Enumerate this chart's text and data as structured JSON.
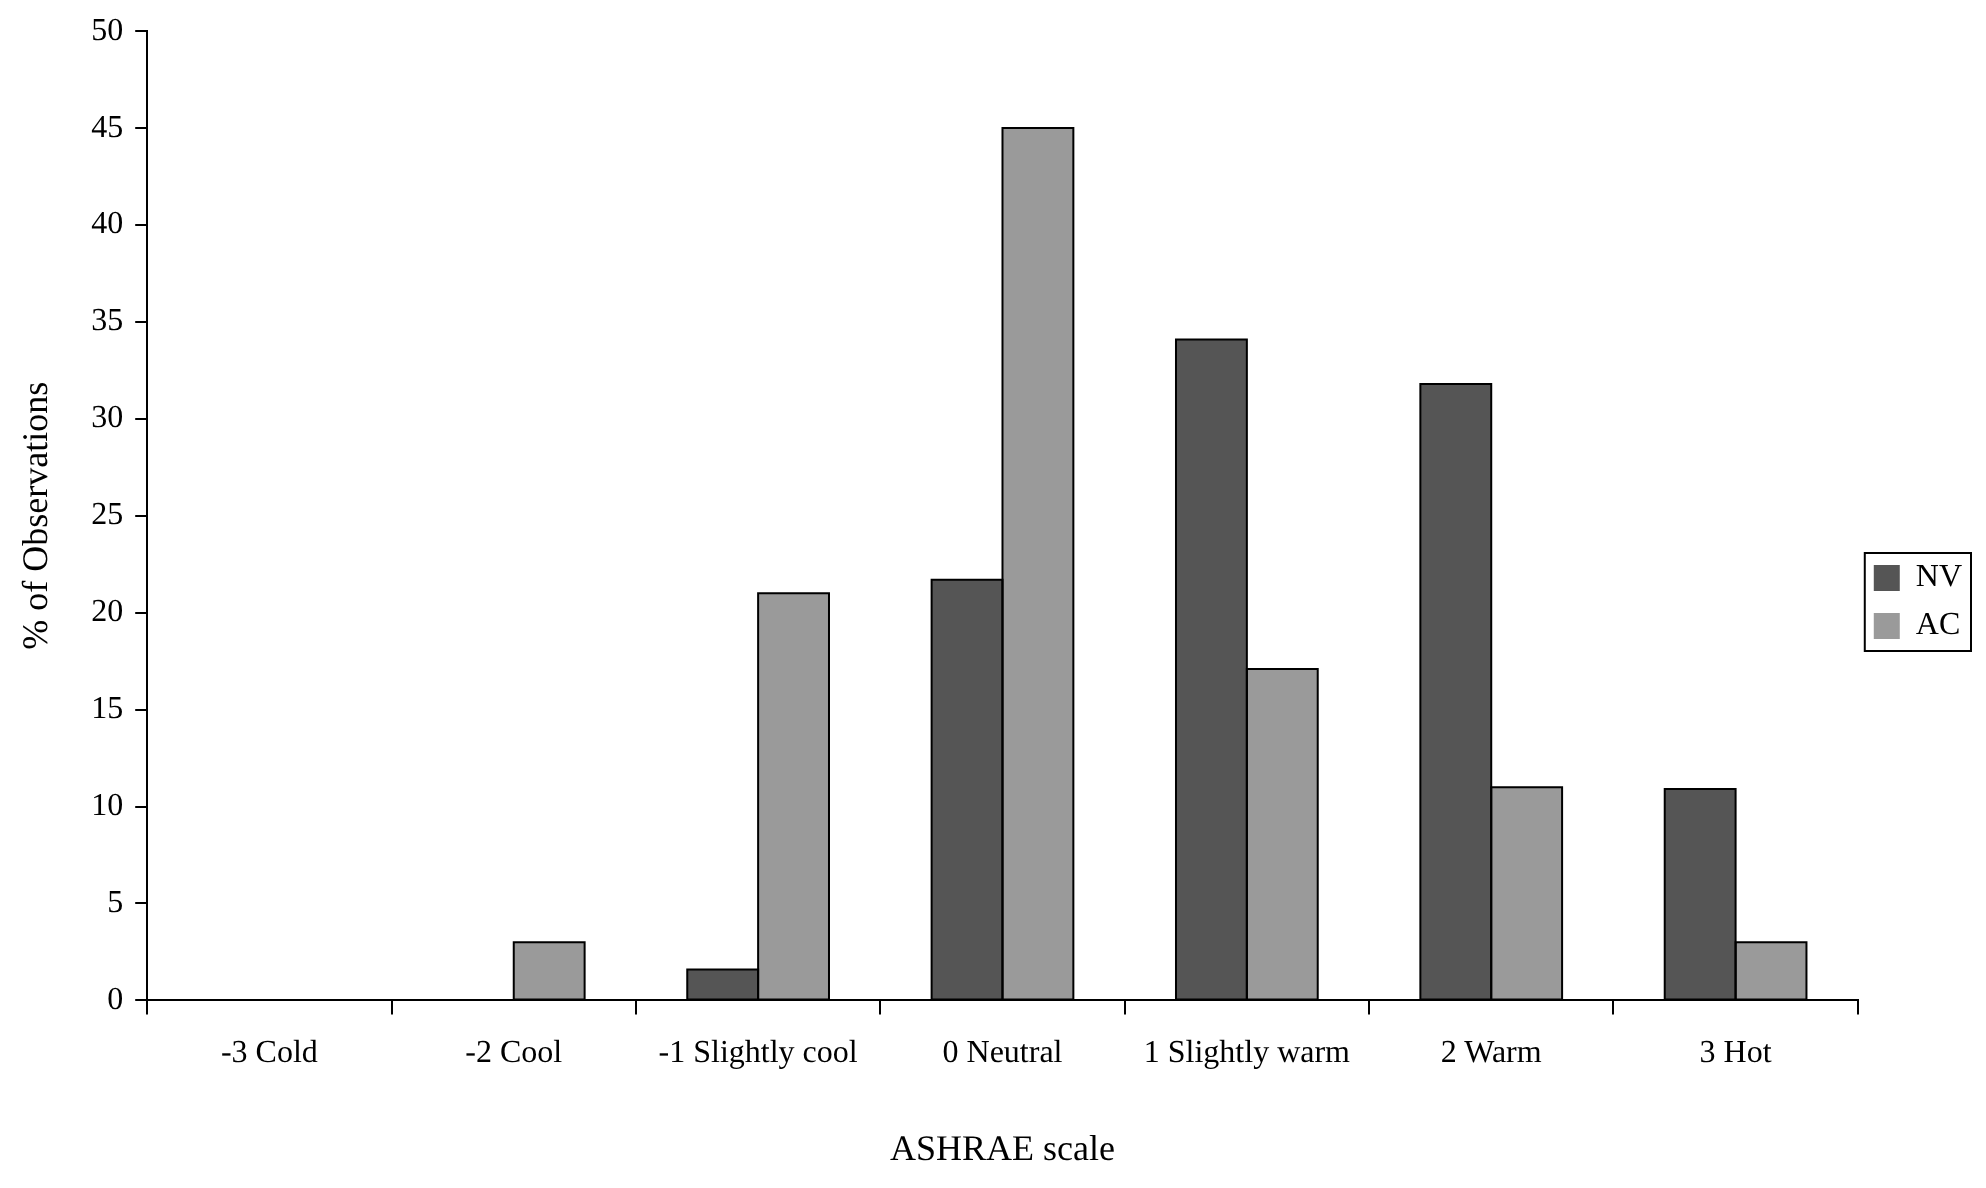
{
  "chart_data": {
    "type": "bar",
    "xlabel": "ASHRAE scale",
    "ylabel": "% of Observations",
    "categories": [
      "-3 Cold",
      "-2 Cool",
      "-1 Slightly cool",
      "0 Neutral",
      "1 Slightly warm",
      "2 Warm",
      "3 Hot"
    ],
    "series": [
      {
        "name": "NV",
        "color": "#555555",
        "values": [
          0,
          0,
          1.6,
          21.7,
          34.1,
          31.8,
          10.9
        ]
      },
      {
        "name": "AC",
        "color": "#9a9a9a",
        "values": [
          0,
          3.0,
          21.0,
          45.0,
          17.1,
          11.0,
          3.0
        ]
      }
    ],
    "ylim": [
      0,
      50
    ],
    "yticks": [
      0,
      5,
      10,
      15,
      20,
      25,
      30,
      35,
      40,
      45,
      50
    ],
    "grid": false,
    "legend": "right"
  }
}
